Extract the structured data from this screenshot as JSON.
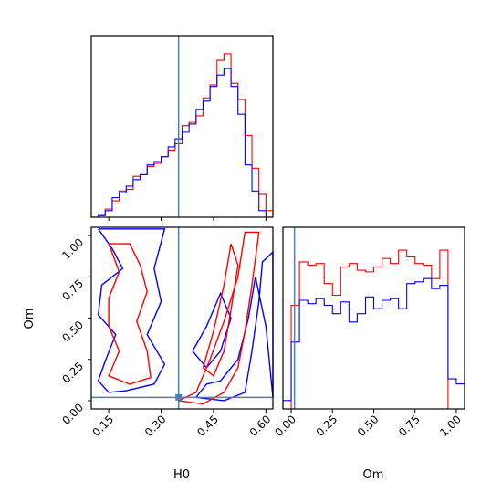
{
  "chart_data": [
    {
      "panel": "h0-marginal",
      "type": "step-histogram",
      "truth_line": 0.35,
      "xlim": [
        0.1,
        0.62
      ],
      "bin_edges": [
        0.1,
        0.12,
        0.14,
        0.16,
        0.18,
        0.2,
        0.22,
        0.24,
        0.26,
        0.28,
        0.3,
        0.32,
        0.34,
        0.36,
        0.38,
        0.4,
        0.42,
        0.44,
        0.46,
        0.48,
        0.5,
        0.52,
        0.54,
        0.56,
        0.58,
        0.6,
        0.62
      ],
      "series": [
        {
          "color": "#ff0000",
          "values": [
            0.0,
            0.01,
            0.05,
            0.1,
            0.16,
            0.17,
            0.25,
            0.26,
            0.31,
            0.33,
            0.37,
            0.41,
            0.45,
            0.56,
            0.58,
            0.62,
            0.73,
            0.81,
            0.96,
            1.0,
            0.82,
            0.72,
            0.5,
            0.3,
            0.14,
            0.04
          ]
        },
        {
          "color": "#0000ff",
          "values": [
            0.0,
            0.01,
            0.04,
            0.12,
            0.15,
            0.19,
            0.23,
            0.26,
            0.32,
            0.34,
            0.37,
            0.43,
            0.48,
            0.52,
            0.57,
            0.66,
            0.71,
            0.8,
            0.87,
            0.91,
            0.8,
            0.63,
            0.32,
            0.16,
            0.04,
            0.0
          ]
        }
      ],
      "ticks": []
    },
    {
      "panel": "joint-contours",
      "type": "contour",
      "xlabel": "H0",
      "ylabel": "Om",
      "xlim": [
        0.1,
        0.62
      ],
      "ylim": [
        -0.05,
        1.05
      ],
      "xticks": [
        "0.15",
        "0.30",
        "0.45",
        "0.60"
      ],
      "yticks": [
        "0.00",
        "0.25",
        "0.50",
        "0.75",
        "1.00"
      ],
      "truth_point": {
        "x": 0.35,
        "y": 0.02
      },
      "series": [
        {
          "color": "#0000ff",
          "contours": [
            [
              [
                0.12,
                1.04
              ],
              [
                0.16,
                0.92
              ],
              [
                0.19,
                0.8
              ],
              [
                0.13,
                0.7
              ],
              [
                0.12,
                0.52
              ],
              [
                0.17,
                0.4
              ],
              [
                0.14,
                0.24
              ],
              [
                0.12,
                0.12
              ],
              [
                0.15,
                0.05
              ],
              [
                0.2,
                0.06
              ],
              [
                0.28,
                0.1
              ],
              [
                0.31,
                0.22
              ],
              [
                0.26,
                0.4
              ],
              [
                0.3,
                0.6
              ],
              [
                0.28,
                0.8
              ],
              [
                0.31,
                1.04
              ],
              [
                0.12,
                1.04
              ]
            ],
            [
              [
                0.4,
                0.02
              ],
              [
                0.48,
                0.0
              ],
              [
                0.54,
                0.05
              ],
              [
                0.56,
                0.3
              ],
              [
                0.58,
                0.6
              ],
              [
                0.59,
                0.84
              ],
              [
                0.62,
                0.9
              ],
              [
                0.62,
                0.02
              ],
              [
                0.6,
                0.45
              ],
              [
                0.57,
                0.75
              ],
              [
                0.55,
                0.5
              ],
              [
                0.52,
                0.25
              ],
              [
                0.47,
                0.12
              ],
              [
                0.43,
                0.1
              ],
              [
                0.4,
                0.02
              ]
            ],
            [
              [
                0.39,
                0.3
              ],
              [
                0.43,
                0.45
              ],
              [
                0.47,
                0.65
              ],
              [
                0.5,
                0.5
              ],
              [
                0.47,
                0.3
              ],
              [
                0.43,
                0.2
              ],
              [
                0.39,
                0.3
              ]
            ]
          ]
        },
        {
          "color": "#ff0000",
          "contours": [
            [
              [
                0.15,
                0.95
              ],
              [
                0.18,
                0.78
              ],
              [
                0.15,
                0.62
              ],
              [
                0.15,
                0.45
              ],
              [
                0.18,
                0.3
              ],
              [
                0.15,
                0.15
              ],
              [
                0.21,
                0.1
              ],
              [
                0.27,
                0.14
              ],
              [
                0.26,
                0.3
              ],
              [
                0.23,
                0.48
              ],
              [
                0.26,
                0.66
              ],
              [
                0.24,
                0.82
              ],
              [
                0.21,
                0.95
              ],
              [
                0.15,
                0.95
              ]
            ],
            [
              [
                0.35,
                0.0
              ],
              [
                0.4,
                0.05
              ],
              [
                0.44,
                0.25
              ],
              [
                0.48,
                0.48
              ],
              [
                0.52,
                0.75
              ],
              [
                0.54,
                1.02
              ],
              [
                0.58,
                1.02
              ],
              [
                0.56,
                0.7
              ],
              [
                0.54,
                0.42
              ],
              [
                0.52,
                0.2
              ],
              [
                0.48,
                0.05
              ],
              [
                0.42,
                -0.02
              ],
              [
                0.35,
                0.0
              ]
            ],
            [
              [
                0.42,
                0.2
              ],
              [
                0.45,
                0.42
              ],
              [
                0.48,
                0.7
              ],
              [
                0.5,
                0.95
              ],
              [
                0.52,
                0.82
              ],
              [
                0.5,
                0.55
              ],
              [
                0.48,
                0.3
              ],
              [
                0.45,
                0.15
              ],
              [
                0.42,
                0.2
              ]
            ]
          ]
        }
      ]
    },
    {
      "panel": "om-marginal",
      "type": "step-histogram",
      "xlabel": "Om",
      "truth_line": 0.02,
      "xlim": [
        -0.05,
        1.05
      ],
      "xticks": [
        "0.00",
        "0.25",
        "0.50",
        "0.75",
        "1.00"
      ],
      "bin_edges": [
        -0.05,
        0.0,
        0.05,
        0.1,
        0.15,
        0.2,
        0.25,
        0.3,
        0.35,
        0.4,
        0.45,
        0.5,
        0.55,
        0.6,
        0.65,
        0.7,
        0.75,
        0.8,
        0.85,
        0.9,
        0.95,
        1.0,
        1.05
      ],
      "series": [
        {
          "color": "#ff0000",
          "values": [
            0.0,
            0.62,
            0.88,
            0.86,
            0.87,
            0.75,
            0.68,
            0.85,
            0.87,
            0.83,
            0.82,
            0.85,
            0.9,
            0.87,
            0.95,
            0.91,
            0.87,
            0.86,
            0.78,
            0.95,
            0.0,
            0.0
          ]
        },
        {
          "color": "#0000ff",
          "values": [
            0.05,
            0.4,
            0.65,
            0.63,
            0.66,
            0.62,
            0.57,
            0.64,
            0.52,
            0.57,
            0.67,
            0.6,
            0.65,
            0.66,
            0.6,
            0.75,
            0.76,
            0.78,
            0.72,
            0.74,
            0.18,
            0.15
          ]
        }
      ]
    }
  ]
}
